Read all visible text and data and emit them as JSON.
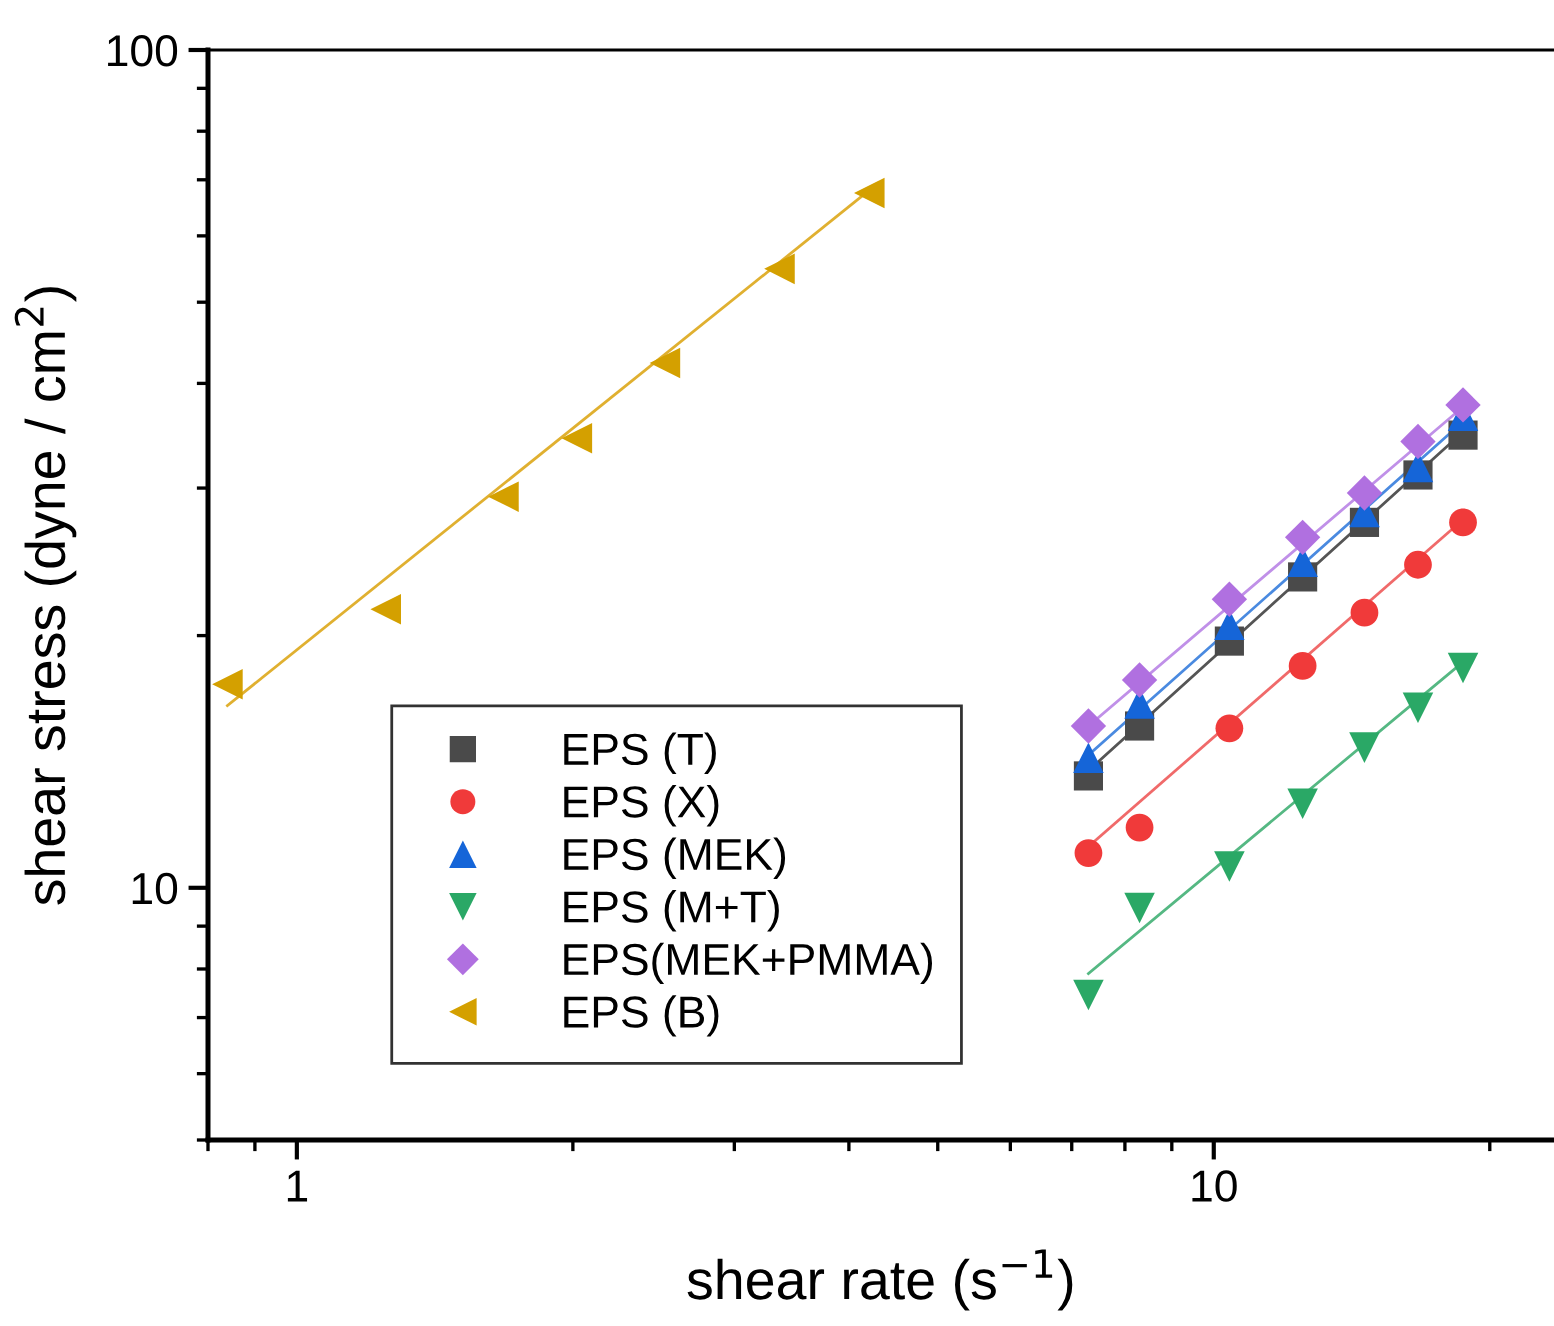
{
  "chart_data": {
    "type": "scatter",
    "xlabel": "shear rate (s$^{−1}$)",
    "ylabel": "shear stress (dyne / cm$^{2}$)",
    "log": "xy",
    "xlim": [
      0.8,
      23.5
    ],
    "ylim": [
      5,
      100
    ],
    "xticks": [
      1,
      10
    ],
    "yticks": [
      10,
      100
    ],
    "grid": false,
    "legend": "bottom left",
    "series": [
      {
        "name": "EPS (T)",
        "color": "#4a4a4a",
        "marker": "square",
        "x": [
          7.3,
          8.3,
          10.4,
          12.5,
          14.6,
          16.7,
          18.7
        ],
        "values": [
          13.6,
          15.6,
          19.7,
          23.5,
          27.3,
          31.1,
          34.7
        ]
      },
      {
        "name": "EPS (X)",
        "color": "#f03a3a",
        "marker": "circle",
        "x": [
          7.3,
          8.3,
          10.4,
          12.5,
          14.6,
          16.7,
          18.7
        ],
        "values": [
          11.0,
          11.8,
          15.5,
          18.4,
          21.3,
          24.3,
          27.3
        ]
      },
      {
        "name": "EPS (MEK)",
        "color": "#1565d8",
        "marker": "triangle",
        "x": [
          7.3,
          8.3,
          10.4,
          12.5,
          14.6,
          16.7,
          18.7
        ],
        "values": [
          14.3,
          16.6,
          20.6,
          24.5,
          28.1,
          31.8,
          36.6
        ]
      },
      {
        "name": "EPS (M+T)",
        "color": "#2aa866",
        "marker": "triangle_down",
        "x": [
          7.3,
          8.3,
          10.4,
          12.5,
          14.6,
          16.7,
          18.7
        ],
        "values": [
          7.45,
          9.46,
          10.6,
          12.6,
          14.7,
          16.4,
          18.3
        ]
      },
      {
        "name": "EPS(MEK+PMMA)",
        "color": "#b070e0",
        "marker": "diamond",
        "x": [
          7.3,
          8.3,
          10.4,
          12.5,
          14.6,
          16.7,
          18.7
        ],
        "values": [
          15.6,
          17.7,
          22.1,
          26.2,
          29.6,
          34.1,
          37.7
        ]
      },
      {
        "name": "EPS (B)",
        "color": "#d4a000",
        "marker": "triangle_left",
        "x": [
          0.84,
          1.25,
          1.68,
          2.02,
          2.52,
          3.36,
          4.21
        ],
        "values": [
          17.5,
          21.5,
          29.3,
          34.4,
          42.3,
          54.8,
          67.5
        ]
      },
      {
        "type": "line",
        "color": "#555555",
        "marker": "none",
        "x": [
          7.3,
          18.7
        ],
        "values": [
          13.8,
          35.0
        ]
      },
      {
        "type": "line",
        "color": "#f06a6a",
        "marker": "none",
        "x": [
          7.3,
          18.7
        ],
        "values": [
          11.2,
          27.5
        ]
      },
      {
        "type": "line",
        "color": "#4a8ae0",
        "marker": "none",
        "x": [
          7.3,
          18.7
        ],
        "values": [
          14.4,
          36.0
        ]
      },
      {
        "type": "line",
        "color": "#55b883",
        "marker": "none",
        "x": [
          7.3,
          18.7
        ],
        "values": [
          7.9,
          18.6
        ]
      },
      {
        "type": "line",
        "color": "#c090e8",
        "marker": "none",
        "x": [
          7.3,
          18.7
        ],
        "values": [
          15.6,
          37.5
        ]
      },
      {
        "type": "line",
        "color": "#e0b030",
        "marker": "none",
        "x": [
          0.84,
          4.21
        ],
        "values": [
          16.5,
          68.0
        ]
      }
    ]
  }
}
